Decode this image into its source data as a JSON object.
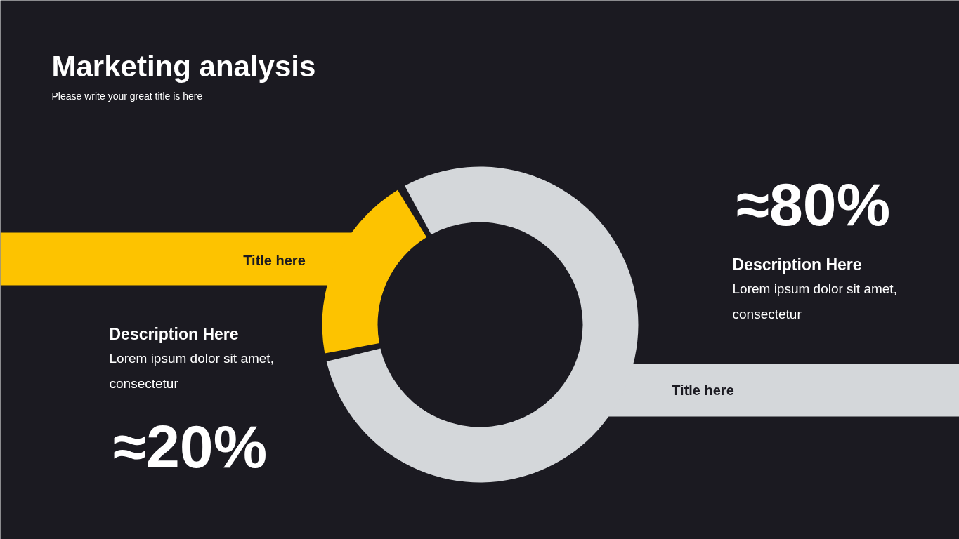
{
  "chart_data": {
    "type": "donut",
    "title": "Marketing analysis",
    "subtitle": "Please write your great title is here",
    "categories": [
      "Title here",
      "Title here"
    ],
    "values": [
      20,
      80
    ],
    "colors": [
      "#fdc300",
      "#d4d7da"
    ],
    "value_labels": [
      "≈20%",
      "≈80%"
    ],
    "annotations": [
      "Description Here",
      "Lorem ipsum dolor sit amet, consectetur",
      "Description Here",
      "Lorem ipsum dolor sit amet, consectetur"
    ]
  }
}
